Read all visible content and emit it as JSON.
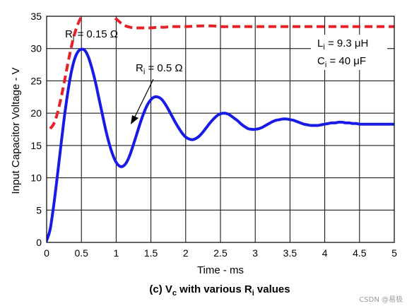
{
  "chart_data": {
    "type": "line",
    "caption": {
      "pre": "(c) V",
      "sub1": "c",
      "mid": " with various R",
      "sub2": "i",
      "post": " values"
    },
    "xlabel": "Time - ms",
    "ylabel": "Input Capacitor Voltage - V",
    "xlim": [
      0,
      5
    ],
    "ylim": [
      0,
      35
    ],
    "xticks": [
      "0",
      "0.5",
      "1",
      "1.5",
      "2",
      "2.5",
      "3",
      "3.5",
      "4",
      "4.5",
      "5"
    ],
    "yticks": [
      "0",
      "5",
      "10",
      "15",
      "20",
      "25",
      "30",
      "35"
    ],
    "grid": true,
    "series": [
      {
        "name": "Ri = 0.15 Ω",
        "label": {
          "main": "R",
          "sub": "i",
          "rest": " = 0.15 Ω"
        },
        "color": "#e8202a",
        "style": "dashed",
        "x": [
          0.05,
          0.1,
          0.15,
          0.2,
          0.25,
          0.3,
          0.35,
          0.4,
          0.45,
          0.5,
          0.55,
          0.6,
          0.65,
          0.7,
          0.75,
          0.8,
          0.85,
          0.9,
          0.95,
          1.0,
          1.1,
          1.2,
          1.3,
          1.4,
          1.5,
          1.6,
          1.7,
          1.8,
          2.0,
          2.2,
          2.4,
          2.5,
          2.7,
          3.0,
          3.5,
          4.0,
          4.5,
          5.0
        ],
        "y": [
          17.6,
          18.3,
          19.8,
          22.0,
          24.6,
          27.4,
          30.0,
          32.2,
          33.8,
          34.9,
          35.5,
          35.8,
          35.8,
          35.9,
          36.0,
          36.0,
          35.9,
          35.6,
          35.2,
          34.6,
          33.7,
          33.3,
          33.2,
          33.2,
          33.2,
          33.3,
          33.3,
          33.4,
          33.4,
          33.5,
          33.5,
          33.4,
          33.4,
          33.4,
          33.4,
          33.4,
          33.4,
          33.4
        ]
      },
      {
        "name": "Ri = 0.5 Ω",
        "label": {
          "main": "R",
          "sub": "i",
          "rest": " = 0.5 Ω"
        },
        "color": "#1a1ae6",
        "style": "solid",
        "x": [
          0.0,
          0.05,
          0.1,
          0.15,
          0.2,
          0.25,
          0.3,
          0.35,
          0.4,
          0.45,
          0.5,
          0.55,
          0.6,
          0.65,
          0.7,
          0.75,
          0.8,
          0.85,
          0.9,
          0.95,
          1.0,
          1.05,
          1.1,
          1.15,
          1.2,
          1.25,
          1.3,
          1.35,
          1.4,
          1.45,
          1.5,
          1.55,
          1.6,
          1.65,
          1.7,
          1.75,
          1.8,
          1.85,
          1.9,
          1.95,
          2.0,
          2.05,
          2.1,
          2.15,
          2.2,
          2.25,
          2.3,
          2.35,
          2.4,
          2.45,
          2.5,
          2.55,
          2.6,
          2.65,
          2.7,
          2.75,
          2.8,
          2.85,
          2.9,
          2.95,
          3.0,
          3.05,
          3.1,
          3.15,
          3.2,
          3.25,
          3.3,
          3.35,
          3.4,
          3.45,
          3.5,
          3.55,
          3.6,
          3.65,
          3.7,
          3.75,
          3.8,
          3.85,
          3.9,
          3.95,
          4.0,
          4.05,
          4.1,
          4.15,
          4.2,
          4.25,
          4.3,
          4.35,
          4.4,
          4.45,
          4.5,
          4.55,
          4.6,
          4.65,
          4.7,
          4.75,
          4.8,
          4.85,
          4.9,
          4.95,
          5.0
        ],
        "y": [
          0.3,
          2.0,
          5.6,
          9.9,
          14.5,
          19.0,
          22.9,
          26.1,
          28.3,
          29.5,
          29.9,
          29.7,
          28.7,
          27.0,
          24.9,
          22.4,
          19.9,
          17.4,
          15.3,
          13.6,
          12.4,
          11.8,
          11.8,
          12.4,
          13.6,
          15.2,
          16.9,
          18.6,
          20.1,
          21.3,
          22.1,
          22.5,
          22.5,
          22.2,
          21.5,
          20.6,
          19.6,
          18.6,
          17.7,
          16.9,
          16.3,
          16.0,
          15.9,
          16.1,
          16.5,
          17.1,
          17.8,
          18.5,
          19.1,
          19.6,
          19.9,
          20.0,
          19.9,
          19.6,
          19.2,
          18.8,
          18.3,
          17.9,
          17.6,
          17.5,
          17.5,
          17.6,
          17.8,
          18.1,
          18.4,
          18.7,
          18.9,
          19.0,
          19.1,
          19.1,
          19.0,
          18.9,
          18.7,
          18.5,
          18.3,
          18.2,
          18.1,
          18.1,
          18.1,
          18.2,
          18.3,
          18.4,
          18.5,
          18.5,
          18.6,
          18.6,
          18.5,
          18.5,
          18.4,
          18.4,
          18.3,
          18.3,
          18.3,
          18.3,
          18.3,
          18.3,
          18.3,
          18.3,
          18.3,
          18.3,
          18.3
        ]
      }
    ],
    "annotations": {
      "inductance": {
        "main": "L",
        "sub": "i",
        "rest": " = 9.3 μH"
      },
      "capacitance": {
        "main": "C",
        "sub": "i",
        "rest": " = 40 μF"
      }
    }
  },
  "watermark": "CSDN @易极"
}
